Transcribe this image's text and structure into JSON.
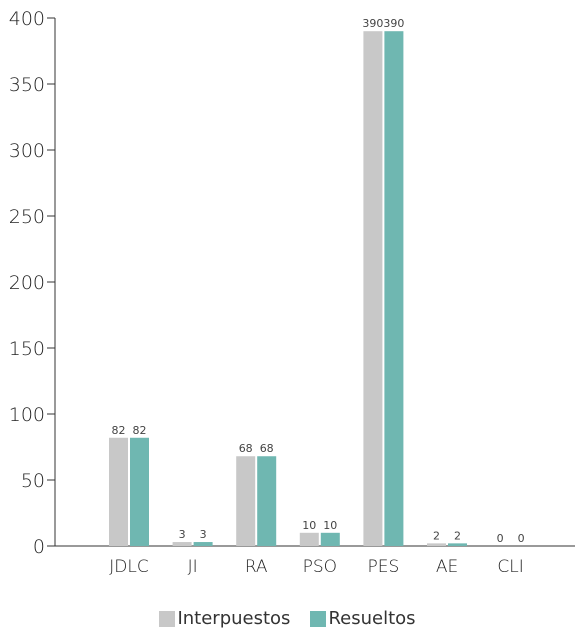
{
  "chart_data": {
    "type": "bar",
    "categories": [
      "JDLC",
      "JI",
      "RA",
      "PSO",
      "PES",
      "AE",
      "CLI"
    ],
    "series": [
      {
        "name": "Interpuestos",
        "values": [
          82,
          3,
          68,
          10,
          390,
          2,
          0
        ],
        "color": "#c8c8c8"
      },
      {
        "name": "Resueltos",
        "values": [
          82,
          3,
          68,
          10,
          390,
          2,
          0
        ],
        "color": "#6fb7b1"
      }
    ],
    "y_ticks": [
      0,
      50,
      100,
      150,
      200,
      250,
      300,
      350,
      400
    ],
    "ylim": [
      0,
      400
    ],
    "grid": false,
    "legend_position": "bottom-center",
    "data_labels": true
  }
}
